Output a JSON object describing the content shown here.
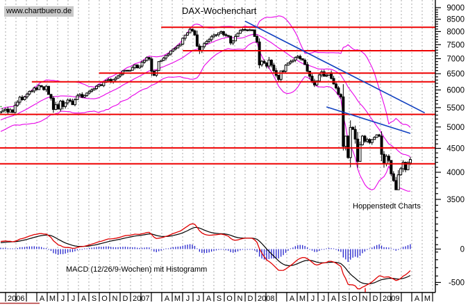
{
  "watermark": "www.chartbuero.de",
  "title": "DAX-Wochenchart",
  "credit": "Hoppenstedt Charts",
  "indicator_label": "MACD (12/26/9-Wochen) mit Histogramm",
  "colors": {
    "grid": "#a8a8a8",
    "frame": "#000000",
    "candle_up_fill": "#ffffff",
    "candle_down_fill": "#000000",
    "candle_stroke": "#000000",
    "bollinger": "#e800e8",
    "support_resistance": "#ee0000",
    "trendline": "#1040c0",
    "macd_line": "#e00000",
    "macd_signal": "#000000",
    "histogram": "#2222cc",
    "green_ma": "#008000",
    "watermark_bg": "#c9c9c9",
    "year2006_underline": "#b03030"
  },
  "chart_data": {
    "type": "candlestick",
    "title": "DAX-Wochenchart",
    "frequency": "weekly",
    "x_range": "Dec 2005 - Apr 2009",
    "price_scale": "logarithmic",
    "closes": [
      5390,
      5430,
      5460,
      5380,
      5440,
      5370,
      5560,
      5650,
      5790,
      5720,
      5800,
      5880,
      5960,
      5970,
      6060,
      6010,
      6130,
      6090,
      6010,
      6110,
      5870,
      5760,
      5450,
      5580,
      5460,
      5680,
      5530,
      5630,
      5710,
      5680,
      5580,
      5720,
      5830,
      5870,
      5790,
      5840,
      5910,
      5960,
      6000,
      6040,
      6110,
      6160,
      6130,
      6230,
      6290,
      6320,
      6240,
      6310,
      6360,
      6430,
      6480,
      6590,
      6610,
      6600,
      6610,
      6700,
      6790,
      6690,
      6750,
      6880,
      6940,
      7040,
      6990,
      6580,
      6450,
      6600,
      6900,
      6940,
      7020,
      7110,
      7160,
      7270,
      7340,
      7380,
      7460,
      7520,
      7740,
      7860,
      7950,
      8090,
      8030,
      7870,
      7450,
      7270,
      7430,
      7540,
      7620,
      7690,
      7800,
      7860,
      7880,
      7950,
      8000,
      7880,
      7850,
      7820,
      7560,
      7640,
      7810,
      7930,
      8040,
      8080,
      8070,
      8060,
      8070,
      8067,
      7810,
      7600,
      6790,
      6910,
      6850,
      6750,
      6950,
      6780,
      6600,
      6450,
      6320,
      6590,
      6580,
      6780,
      6850,
      6900,
      6950,
      7040,
      7080,
      7000,
      6950,
      6800,
      6580,
      6420,
      6270,
      6150,
      6270,
      6460,
      6560,
      6420,
      6450,
      6530,
      6350,
      6180,
      6060,
      5870,
      5800,
      4544,
      4780,
      4300,
      4990,
      4940,
      4710,
      4220,
      4580,
      4780,
      4660,
      4700,
      4630,
      4700,
      4750,
      4810,
      4780,
      4370,
      4170,
      4330,
      4240,
      3970,
      3840,
      3670,
      3950,
      4070,
      4200,
      4050,
      4190,
      4260
    ],
    "indicator_warmup_closes": [
      4900,
      4930,
      4960,
      4990,
      5020,
      5060,
      5090,
      5130,
      5080,
      5120,
      5160,
      5200,
      5170,
      5230,
      5280,
      5320,
      5290,
      5340,
      5370,
      5400
    ],
    "bollinger": {
      "window": 20,
      "stdev_mult": 2
    },
    "macd": {
      "fast": 12,
      "slow": 26,
      "signal": 9
    },
    "support_resistance": [
      {
        "level": 8170,
        "from_week": 67
      },
      {
        "level": 7280,
        "from_week": 76
      },
      {
        "level": 6520,
        "from_week": 41
      },
      {
        "level": 6245,
        "from_week": 13
      },
      {
        "level": 5320,
        "from_week": 0
      },
      {
        "level": 4510,
        "from_week": 0
      },
      {
        "level": 4170,
        "from_week": 0
      }
    ],
    "trendlines": [
      {
        "from": {
          "week": 102,
          "price": 8420
        },
        "to": {
          "week": 177,
          "price": 5360
        }
      },
      {
        "from": {
          "week": 136,
          "price": 5520
        },
        "to": {
          "week": 171,
          "price": 4845
        }
      }
    ],
    "green_segment": {
      "weeks": [
        0,
        1,
        2
      ],
      "prices": [
        5540,
        5450,
        5370
      ]
    },
    "price_axis": {
      "major_labels": [
        9000,
        8500,
        8000,
        7500,
        7000,
        6500,
        6000,
        5500,
        5000,
        4500,
        4000,
        3500
      ],
      "minor_step": 100,
      "minor_floor": 2300
    },
    "macd_axis": {
      "labels": [
        0,
        -500
      ]
    },
    "x_axis": {
      "months": [
        {
          "t": "2006",
          "m": 0,
          "year": true
        },
        {
          "t": "A",
          "m": 3
        },
        {
          "t": "M",
          "m": 4
        },
        {
          "t": "J",
          "m": 5
        },
        {
          "t": "J",
          "m": 6
        },
        {
          "t": "A",
          "m": 7
        },
        {
          "t": "S",
          "m": 8
        },
        {
          "t": "O",
          "m": 9
        },
        {
          "t": "N",
          "m": 10
        },
        {
          "t": "D",
          "m": 11
        },
        {
          "t": "2007",
          "m": 12,
          "year": true
        },
        {
          "t": "A",
          "m": 15
        },
        {
          "t": "M",
          "m": 16
        },
        {
          "t": "J",
          "m": 17
        },
        {
          "t": "J",
          "m": 18
        },
        {
          "t": "A",
          "m": 19
        },
        {
          "t": "S",
          "m": 20
        },
        {
          "t": "O",
          "m": 21
        },
        {
          "t": "N",
          "m": 22
        },
        {
          "t": "D",
          "m": 23
        },
        {
          "t": "2008",
          "m": 24,
          "year": true
        },
        {
          "t": "A",
          "m": 27
        },
        {
          "t": "M",
          "m": 28
        },
        {
          "t": "J",
          "m": 29
        },
        {
          "t": "J",
          "m": 30
        },
        {
          "t": "A",
          "m": 31
        },
        {
          "t": "S",
          "m": 32
        },
        {
          "t": "O",
          "m": 33
        },
        {
          "t": "N",
          "m": 34
        },
        {
          "t": "D",
          "m": 35
        },
        {
          "t": "2009",
          "m": 36,
          "year": true
        },
        {
          "t": "A",
          "m": 39
        },
        {
          "t": "M",
          "m": 40
        },
        {
          "t": "J",
          "m": 41
        }
      ],
      "month_count": 42,
      "year2006_underline": true,
      "red_marker_month_x": 526
    }
  }
}
